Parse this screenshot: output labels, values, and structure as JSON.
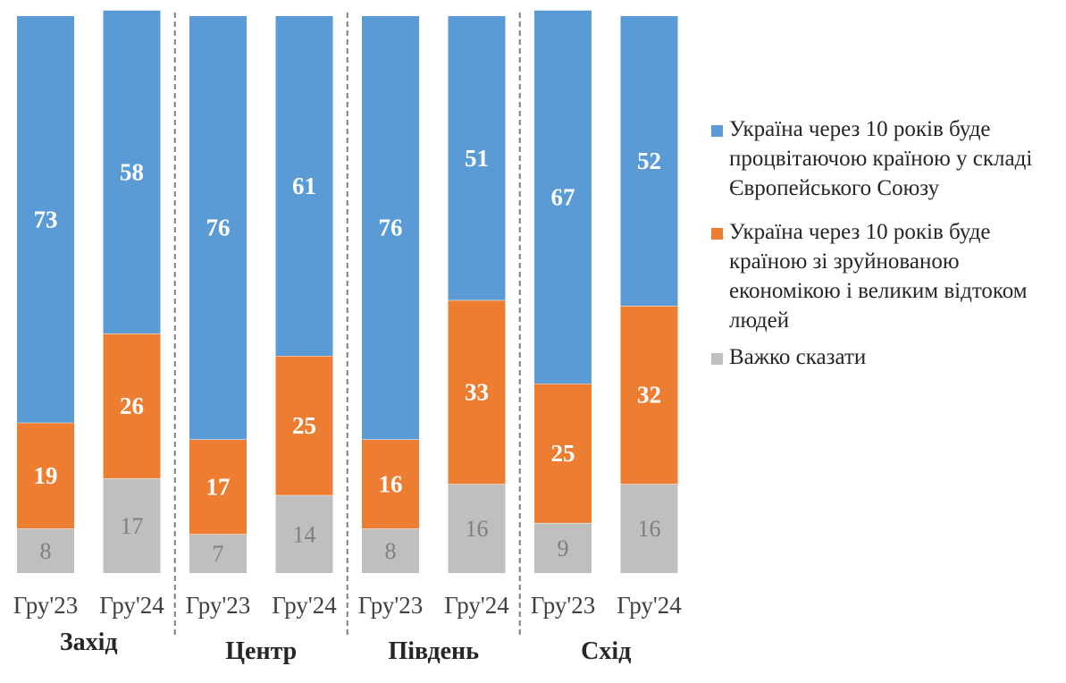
{
  "chart_data": {
    "type": "bar",
    "stacked": true,
    "groups": [
      {
        "name": "Захід",
        "categories": [
          "Гру'23",
          "Гру'24"
        ]
      },
      {
        "name": "Центр",
        "categories": [
          "Гру'23",
          "Гру'24"
        ]
      },
      {
        "name": "Південь",
        "categories": [
          "Гру'23",
          "Гру'24"
        ]
      },
      {
        "name": "Схід",
        "categories": [
          "Гру'23",
          "Гру'24"
        ]
      }
    ],
    "categories": [
      "Гру'23",
      "Гру'24",
      "Гру'23",
      "Гру'24",
      "Гру'23",
      "Гру'24",
      "Гру'23",
      "Гру'24"
    ],
    "series": [
      {
        "name": "Важко сказати",
        "color": "#bfbfbf",
        "values": [
          8,
          17,
          7,
          14,
          8,
          16,
          9,
          16
        ]
      },
      {
        "name": "Україна через 10 років буде країною зі зруйнованою економікою і великим відтоком людей",
        "color": "#ed7d31",
        "values": [
          19,
          26,
          17,
          25,
          16,
          33,
          25,
          32
        ]
      },
      {
        "name": "Україна через 10 років буде процвітаючою країною у складі Європейського Союзу",
        "color": "#5b9bd5",
        "values": [
          73,
          58,
          76,
          61,
          76,
          51,
          67,
          52
        ]
      }
    ],
    "legend": [
      {
        "label": "Україна через 10 років буде процвітаючою країною у складі Європейського Союзу",
        "color": "#5b9bd5"
      },
      {
        "label": "Україна через 10 років буде країною зі зруйнованою економікою і великим відтоком людей",
        "color": "#ed7d31"
      },
      {
        "label": "Важко сказати",
        "color": "#bfbfbf"
      }
    ],
    "legend_position": "right",
    "ylim": [
      0,
      100
    ],
    "grid": false,
    "title": "",
    "xlabel": "",
    "ylabel": ""
  }
}
